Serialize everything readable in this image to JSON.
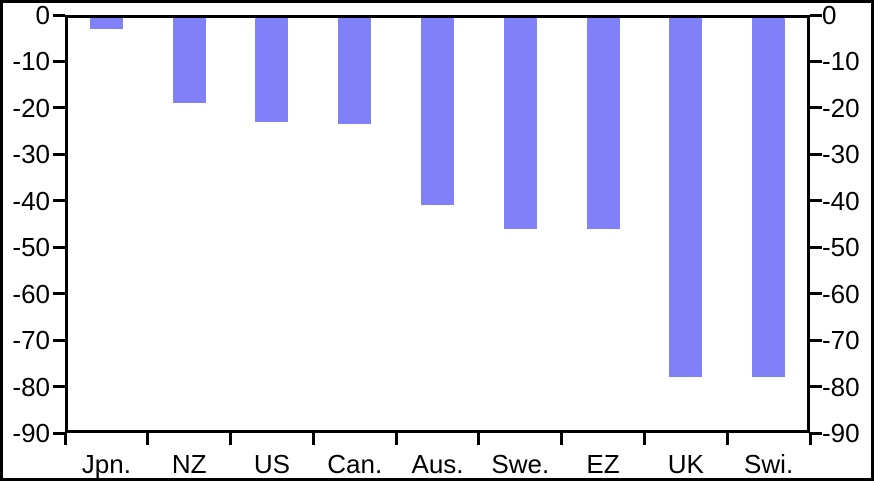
{
  "chart_data": {
    "type": "bar",
    "categories": [
      "Jpn.",
      "NZ",
      "US",
      "Can.",
      "Aus.",
      "Swe.",
      "EZ",
      "UK",
      "Swi."
    ],
    "values": [
      -3,
      -19,
      -23,
      -23.5,
      -41,
      -46,
      -46,
      -78,
      -78
    ],
    "title": "",
    "xlabel": "",
    "ylabel": "",
    "ylim": [
      -90,
      0
    ],
    "y_ticks": [
      0,
      -10,
      -20,
      -30,
      -40,
      -50,
      -60,
      -70,
      -80,
      -90
    ],
    "y_tick_labels": [
      "0",
      "-10",
      "-20",
      "-30",
      "-40",
      "-50",
      "-60",
      "-70",
      "-80",
      "-90"
    ],
    "dual_y_axis": true,
    "grid": false,
    "legend": null,
    "bar_color": "#8080f8",
    "axis_color": "#000000",
    "background_color": "#ffffff",
    "border_color": "#000000"
  }
}
